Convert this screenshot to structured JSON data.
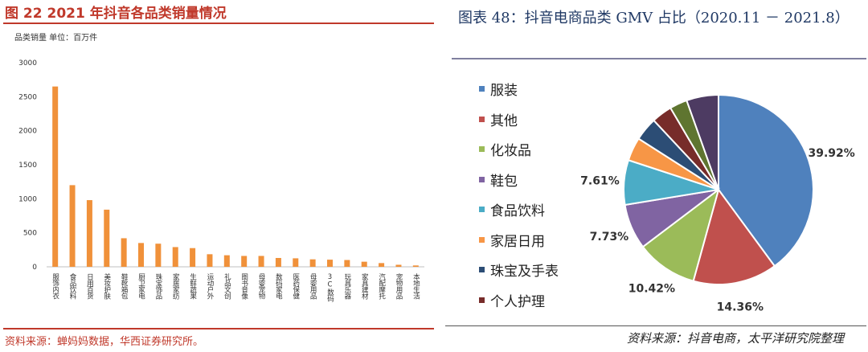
{
  "left_panel": {
    "title": "图 22  2021 年抖音各品类销量情况",
    "unit_label": "品类销量  单位：百万件",
    "source": "资料来源：蝉妈妈数据，华西证券研究所。"
  },
  "right_panel": {
    "title": "图表 48：抖音电商品类 GMV 占比（2020.11 － 2021.8）",
    "source": "资料来源：抖音电商，太平洋研究院整理"
  },
  "colors": {
    "bar": "#f0913a",
    "left_accent": "#c0392b",
    "right_title": "#1f3864"
  },
  "chart_data": [
    {
      "type": "bar",
      "title": "2021 年抖音各品类销量情况",
      "ylabel": "品类销量  单位：百万件",
      "ylim": [
        0,
        3000
      ],
      "yticks": [
        0,
        500,
        1000,
        1500,
        2000,
        2500,
        3000
      ],
      "grid": false,
      "categories": [
        "服饰内衣",
        "食品饮料",
        "日用百货",
        "美妆护肤",
        "鞋靴箱包",
        "厨卫家电",
        "珠宝饰品",
        "家居家纺",
        "生鲜蔬果",
        "运动户外",
        "礼品文创",
        "图书音像",
        "母婴宠物",
        "数码家电",
        "医药保健",
        "母婴用品",
        "3C数码",
        "玩具乐器",
        "家具建材",
        "汽配摩托",
        "宠物用品",
        "本地生活"
      ],
      "values": [
        2650,
        1200,
        980,
        840,
        420,
        350,
        340,
        290,
        275,
        185,
        170,
        160,
        160,
        130,
        125,
        110,
        105,
        100,
        75,
        55,
        30,
        20
      ]
    },
    {
      "type": "pie",
      "title": "抖音电商品类 GMV 占比（2020.11 － 2021.8）",
      "legend_position": "left",
      "slices": [
        {
          "label": "服装",
          "value": 39.92,
          "display": "39.92%",
          "color": "#4f81bd"
        },
        {
          "label": "其他",
          "value": 14.36,
          "display": "14.36%",
          "color": "#c0504d"
        },
        {
          "label": "化妆品",
          "value": 10.42,
          "display": "10.42%",
          "color": "#9bbb59"
        },
        {
          "label": "鞋包",
          "value": 7.73,
          "display": "7.73%",
          "color": "#8064a2"
        },
        {
          "label": "食品饮料",
          "value": 7.61,
          "display": "7.61%",
          "color": "#4bacc6"
        },
        {
          "label": "家居日用",
          "value": 4.0,
          "display": "",
          "color": "#f79646"
        },
        {
          "label": "珠宝及手表",
          "value": 4.0,
          "display": "",
          "color": "#2c4d75"
        },
        {
          "label": "个人护理",
          "value": 3.5,
          "display": "",
          "color": "#772c2a"
        },
        {
          "label": "",
          "value": 3.0,
          "display": "",
          "color": "#5f7530"
        },
        {
          "label": "",
          "value": 5.46,
          "display": "",
          "color": "#4d3b62"
        }
      ]
    }
  ]
}
